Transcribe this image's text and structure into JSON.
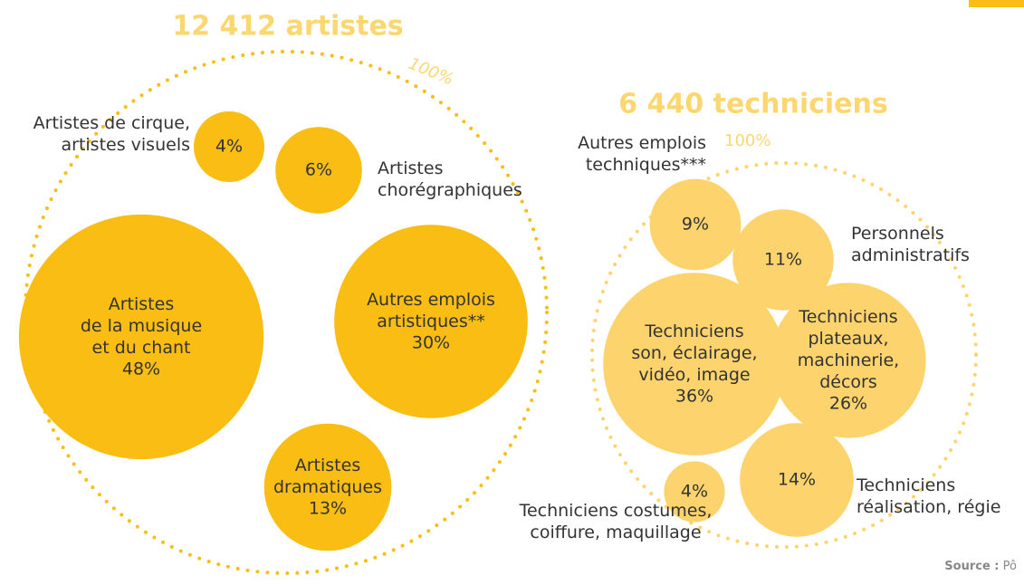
{
  "chart_data": [
    {
      "type": "bubble",
      "title": "12 412 artistes",
      "total_label": "100%",
      "color": "#f9bd14",
      "categories": [
        "Artistes\nde la musique\net du chant",
        "Autres emplois\nartistiques**",
        "Artistes\ndramatiques",
        "Artistes\nchorégraphiques",
        "Artistes de cirque,\nartistes visuels"
      ],
      "values": [
        48,
        30,
        13,
        6,
        4
      ],
      "value_labels": [
        "48%",
        "30%",
        "13%",
        "6%",
        "4%"
      ]
    },
    {
      "type": "bubble",
      "title": "6 440 techniciens",
      "total_label": "100%",
      "color": "#fdd36e",
      "categories": [
        "Techniciens\nson, éclairage,\nvidéo, image",
        "Techniciens\nplateaux,\nmachinerie,\ndécors",
        "Techniciens\nréalisation, régie",
        "Personnels\nadministratifs",
        "Autres emplois\ntechniques***",
        "Techniciens costumes,\ncoiffure, maquillage"
      ],
      "values": [
        36,
        26,
        14,
        11,
        9,
        4
      ],
      "value_labels": [
        "36%",
        "26%",
        "14%",
        "11%",
        "9%",
        "4%"
      ]
    }
  ],
  "source": {
    "label": "Source :",
    "text": "Pô"
  }
}
